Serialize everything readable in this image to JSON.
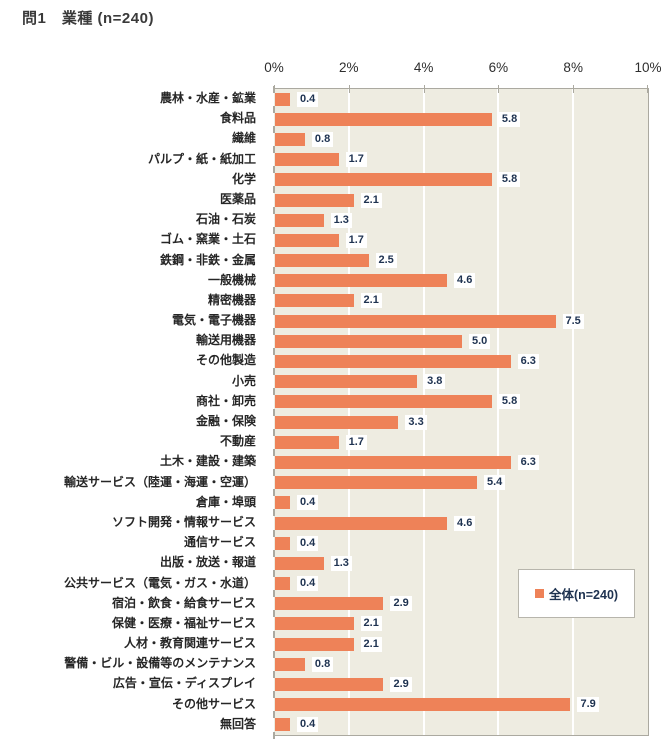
{
  "header": {
    "title": "問1　業種 (n=240)"
  },
  "chart_data": {
    "type": "bar",
    "orientation": "horizontal",
    "title": "問1　業種 (n=240)",
    "series_name": "全体(n=240)",
    "categories": [
      "農林・水産・鉱業",
      "食料品",
      "繊維",
      "パルプ・紙・紙加工",
      "化学",
      "医薬品",
      "石油・石炭",
      "ゴム・窯業・土石",
      "鉄鋼・非鉄・金属",
      "一般機械",
      "精密機器",
      "電気・電子機器",
      "輸送用機器",
      "その他製造",
      "小売",
      "商社・卸売",
      "金融・保険",
      "不動産",
      "土木・建設・建築",
      "輸送サービス（陸運・海運・空運）",
      "倉庫・埠頭",
      "ソフト開発・情報サービス",
      "通信サービス",
      "出版・放送・報道",
      "公共サービス（電気・ガス・水道）",
      "宿泊・飲食・給食サービス",
      "保健・医療・福祉サービス",
      "人材・教育関連サービス",
      "警備・ビル・設備等のメンテナンス",
      "広告・宣伝・ディスプレイ",
      "その他サービス",
      "無回答"
    ],
    "values": [
      0.4,
      5.8,
      0.8,
      1.7,
      5.8,
      2.1,
      1.3,
      1.7,
      2.5,
      4.6,
      2.1,
      7.5,
      5.0,
      6.3,
      3.8,
      5.8,
      3.3,
      1.7,
      6.3,
      5.4,
      0.4,
      4.6,
      0.4,
      1.3,
      0.4,
      2.9,
      2.1,
      2.1,
      0.8,
      2.9,
      7.9,
      0.4
    ],
    "value_suffix": "%",
    "xlabel": "",
    "ylabel": "",
    "axis": {
      "position": "top",
      "min": 0,
      "max": 10,
      "tick_labels": [
        "0%",
        "2%",
        "4%",
        "6%",
        "8%",
        "10%"
      ]
    },
    "grid": "vertical-major",
    "legend": {
      "label": "全体(n=240)",
      "position": "inside-right"
    },
    "colors": {
      "bar": "#ee8258",
      "plot_bg": "#eeece1",
      "gridline": "#ffffff",
      "border": "#aba9a0",
      "value_text": "#1e3250",
      "category_text": "#262626",
      "axis_text": "#2e2e2e",
      "title_text": "#3a3a3a"
    }
  }
}
